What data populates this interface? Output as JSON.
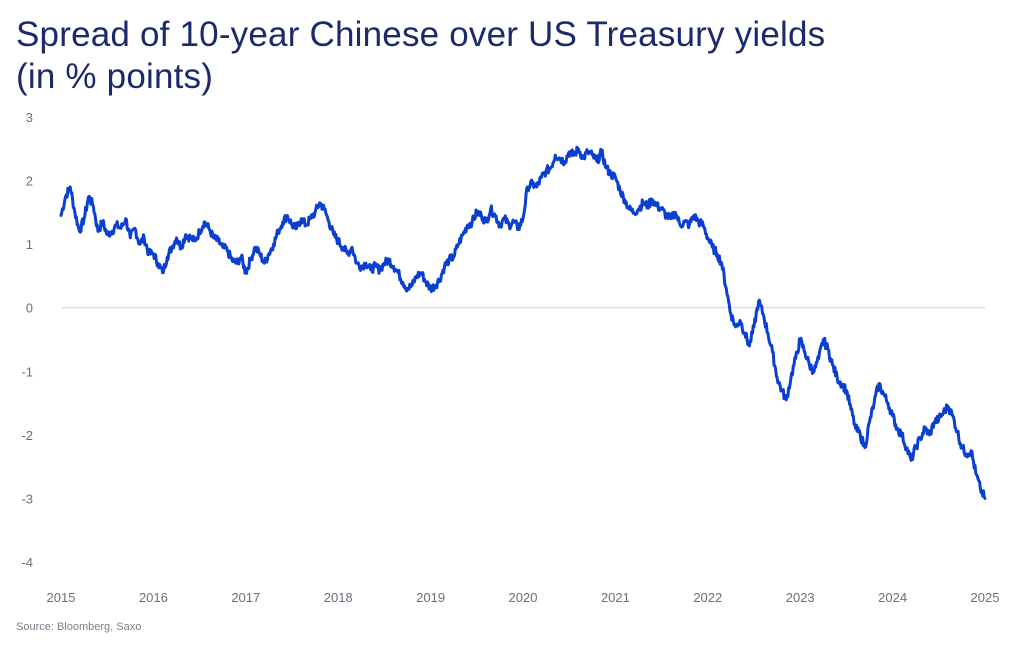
{
  "chart_data": {
    "type": "line",
    "title": "Spread of 10-year Chinese over US Treasury yields",
    "subtitle": "(in % points)",
    "source": "Source: Bloomberg, Saxo",
    "ylim": [
      -4,
      3
    ],
    "yticks": [
      3,
      2,
      1,
      0,
      -1,
      -2,
      -3,
      -4
    ],
    "xlim": [
      2015,
      2025
    ],
    "xticks": [
      "2015",
      "2016",
      "2017",
      "2018",
      "2019",
      "2020",
      "2021",
      "2022",
      "2023",
      "2024",
      "2025"
    ],
    "zero_line": true,
    "grid": false,
    "line_color": "#0a3fd1",
    "series": [
      {
        "x": [
          2015.0,
          2015.05,
          2015.1,
          2015.15,
          2015.2,
          2015.25,
          2015.3,
          2015.35,
          2015.4,
          2015.45,
          2015.5,
          2015.55,
          2015.6,
          2015.65,
          2015.7,
          2015.75,
          2015.8,
          2015.85,
          2015.9,
          2015.95,
          2016.0,
          2016.05,
          2016.1,
          2016.15,
          2016.2,
          2016.25,
          2016.3,
          2016.35,
          2016.4,
          2016.45,
          2016.5,
          2016.55,
          2016.6,
          2016.65,
          2016.7,
          2016.75,
          2016.8,
          2016.85,
          2016.9,
          2016.95,
          2017.0,
          2017.05,
          2017.1,
          2017.15,
          2017.2,
          2017.25,
          2017.3,
          2017.35,
          2017.4,
          2017.45,
          2017.5,
          2017.55,
          2017.6,
          2017.65,
          2017.7,
          2017.75,
          2017.8,
          2017.85,
          2017.9,
          2017.95,
          2018.0,
          2018.05,
          2018.1,
          2018.15,
          2018.2,
          2018.25,
          2018.3,
          2018.35,
          2018.4,
          2018.45,
          2018.5,
          2018.55,
          2018.6,
          2018.65,
          2018.7,
          2018.75,
          2018.8,
          2018.85,
          2018.9,
          2018.95,
          2019.0,
          2019.05,
          2019.1,
          2019.15,
          2019.2,
          2019.25,
          2019.3,
          2019.35,
          2019.4,
          2019.45,
          2019.5,
          2019.55,
          2019.6,
          2019.65,
          2019.7,
          2019.75,
          2019.8,
          2019.85,
          2019.9,
          2019.95,
          2020.0,
          2020.05,
          2020.1,
          2020.15,
          2020.2,
          2020.25,
          2020.3,
          2020.35,
          2020.4,
          2020.45,
          2020.5,
          2020.55,
          2020.6,
          2020.65,
          2020.7,
          2020.75,
          2020.8,
          2020.85,
          2020.9,
          2020.95,
          2021.0,
          2021.05,
          2021.1,
          2021.15,
          2021.2,
          2021.25,
          2021.3,
          2021.35,
          2021.4,
          2021.45,
          2021.5,
          2021.55,
          2021.6,
          2021.65,
          2021.7,
          2021.75,
          2021.8,
          2021.85,
          2021.9,
          2021.95,
          2022.0,
          2022.05,
          2022.1,
          2022.15,
          2022.2,
          2022.25,
          2022.3,
          2022.35,
          2022.4,
          2022.45,
          2022.5,
          2022.55,
          2022.6,
          2022.65,
          2022.7,
          2022.75,
          2022.8,
          2022.85,
          2022.9,
          2022.95,
          2023.0,
          2023.05,
          2023.1,
          2023.15,
          2023.2,
          2023.25,
          2023.3,
          2023.35,
          2023.4,
          2023.45,
          2023.5,
          2023.55,
          2023.6,
          2023.65,
          2023.7,
          2023.75,
          2023.8,
          2023.85,
          2023.9,
          2023.95,
          2024.0,
          2024.05,
          2024.1,
          2024.15,
          2024.2,
          2024.25,
          2024.3,
          2024.35,
          2024.4,
          2024.45,
          2024.5,
          2024.55,
          2024.6,
          2024.65,
          2024.7,
          2024.75,
          2024.8,
          2024.85,
          2024.9,
          2024.95,
          2025.0
        ],
        "values": [
          1.45,
          1.75,
          1.9,
          1.5,
          1.2,
          1.4,
          1.75,
          1.6,
          1.2,
          1.35,
          1.15,
          1.2,
          1.3,
          1.25,
          1.4,
          1.1,
          1.25,
          1.0,
          1.1,
          0.85,
          0.85,
          0.7,
          0.55,
          0.8,
          0.95,
          1.1,
          0.95,
          1.15,
          1.1,
          1.05,
          1.2,
          1.35,
          1.25,
          1.1,
          1.05,
          0.95,
          0.9,
          0.75,
          0.7,
          0.8,
          0.55,
          0.75,
          0.95,
          0.85,
          0.7,
          0.85,
          1.0,
          1.2,
          1.35,
          1.45,
          1.3,
          1.25,
          1.4,
          1.3,
          1.4,
          1.5,
          1.65,
          1.55,
          1.35,
          1.15,
          1.05,
          0.95,
          0.85,
          0.95,
          0.7,
          0.65,
          0.7,
          0.6,
          0.65,
          0.6,
          0.7,
          0.75,
          0.65,
          0.55,
          0.4,
          0.3,
          0.35,
          0.5,
          0.55,
          0.4,
          0.3,
          0.35,
          0.45,
          0.65,
          0.75,
          0.8,
          1.0,
          1.15,
          1.3,
          1.35,
          1.5,
          1.45,
          1.35,
          1.55,
          1.45,
          1.3,
          1.4,
          1.3,
          1.35,
          1.25,
          1.4,
          1.9,
          1.95,
          1.9,
          2.05,
          2.15,
          2.2,
          2.4,
          2.35,
          2.3,
          2.45,
          2.4,
          2.5,
          2.35,
          2.45,
          2.4,
          2.3,
          2.45,
          2.2,
          2.1,
          2.05,
          1.85,
          1.7,
          1.55,
          1.5,
          1.55,
          1.65,
          1.6,
          1.7,
          1.6,
          1.55,
          1.45,
          1.4,
          1.5,
          1.3,
          1.35,
          1.3,
          1.45,
          1.35,
          1.3,
          1.1,
          0.95,
          0.85,
          0.7,
          0.3,
          -0.1,
          -0.3,
          -0.2,
          -0.4,
          -0.6,
          -0.3,
          0.1,
          -0.1,
          -0.4,
          -0.7,
          -1.1,
          -1.3,
          -1.45,
          -1.1,
          -0.8,
          -0.5,
          -0.7,
          -0.9,
          -1.0,
          -0.8,
          -0.5,
          -0.65,
          -0.9,
          -1.1,
          -1.2,
          -1.3,
          -1.6,
          -1.9,
          -2.0,
          -2.2,
          -1.8,
          -1.5,
          -1.2,
          -1.35,
          -1.5,
          -1.7,
          -1.9,
          -2.0,
          -2.2,
          -2.4,
          -2.2,
          -2.05,
          -1.9,
          -2.0,
          -1.8,
          -1.75,
          -1.65,
          -1.55,
          -1.7,
          -1.95,
          -2.2,
          -2.3,
          -2.25,
          -2.6,
          -2.85,
          -3.0
        ]
      }
    ]
  }
}
